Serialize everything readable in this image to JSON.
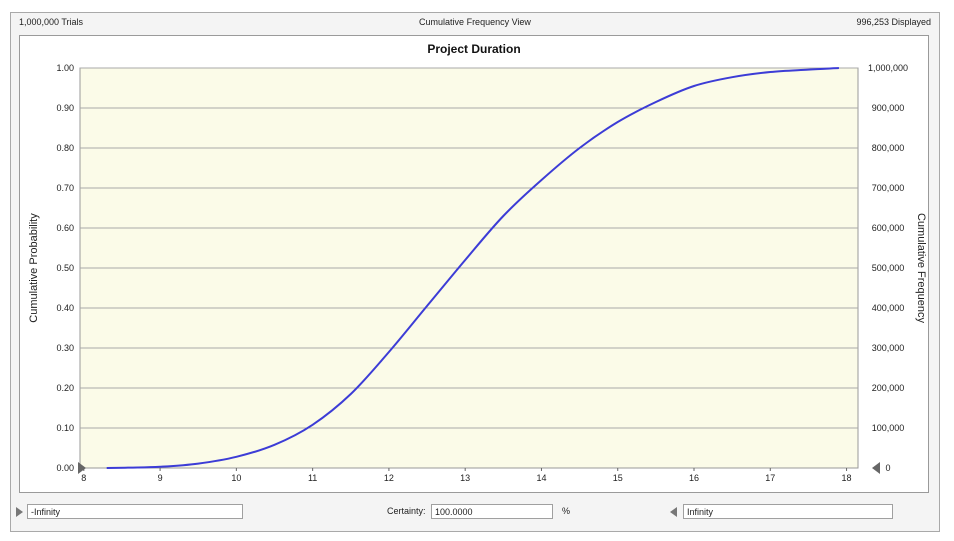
{
  "window": {
    "trials": "1,000,000 Trials",
    "view": "Cumulative Frequency View",
    "displayed": "996,253 Displayed"
  },
  "chart_data": {
    "type": "line",
    "title": "Project Duration",
    "ylabel": "Cumulative Probability",
    "y2label": "Cumulative Frequency",
    "xlim": [
      7.95,
      18.15
    ],
    "ylim": [
      0,
      1
    ],
    "x_ticks": [
      "8",
      "9",
      "10",
      "11",
      "12",
      "13",
      "14",
      "15",
      "16",
      "17",
      "18"
    ],
    "y_ticks": [
      "0.00",
      "0.10",
      "0.20",
      "0.30",
      "0.40",
      "0.50",
      "0.60",
      "0.70",
      "0.80",
      "0.90",
      "1.00"
    ],
    "y2_ticks": [
      "0",
      "100,000",
      "200,000",
      "300,000",
      "400,000",
      "500,000",
      "600,000",
      "700,000",
      "800,000",
      "900,000",
      "1,000,000"
    ],
    "grid": true,
    "colors": {
      "plot_bg": "#fbfbe8",
      "line": "#3c3cd6",
      "grid": "#a8a8a8"
    },
    "series": [
      {
        "x": [
          8.3,
          8.6,
          9.0,
          9.5,
          10.0,
          10.5,
          11.0,
          11.5,
          12.0,
          12.5,
          13.0,
          13.5,
          14.0,
          14.5,
          15.0,
          15.5,
          16.0,
          16.5,
          17.0,
          17.5,
          17.9
        ],
        "values": [
          0.0,
          0.001,
          0.003,
          0.011,
          0.028,
          0.058,
          0.108,
          0.185,
          0.29,
          0.405,
          0.52,
          0.63,
          0.72,
          0.8,
          0.865,
          0.915,
          0.955,
          0.977,
          0.99,
          0.996,
          1.0
        ]
      }
    ]
  },
  "bottom": {
    "left_value": "-Infinity",
    "certainty_label": "Certainty:",
    "certainty_value": "100.0000",
    "percent": "%",
    "right_value": "Infinity"
  }
}
